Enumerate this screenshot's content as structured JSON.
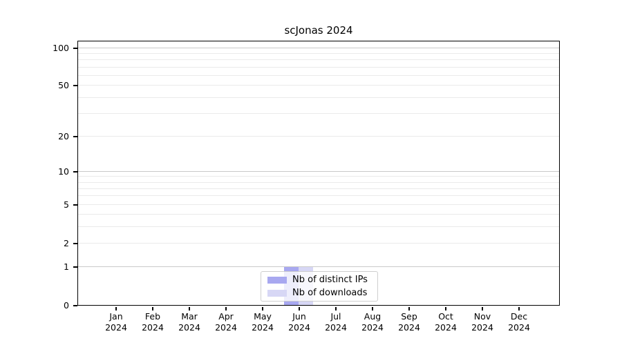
{
  "chart_data": {
    "type": "bar",
    "title": "scJonas 2024",
    "x_categories": [
      "Jan",
      "Feb",
      "Mar",
      "Apr",
      "May",
      "Jun",
      "Jul",
      "Aug",
      "Sep",
      "Oct",
      "Nov",
      "Dec"
    ],
    "x_year": "2024",
    "series": [
      {
        "name": "Nb of distinct IPs",
        "color": "#a8a8f0",
        "values": [
          0,
          0,
          0,
          0,
          0,
          1,
          0,
          0,
          0,
          0,
          0,
          0
        ]
      },
      {
        "name": "Nb of downloads",
        "color": "#d7d7f5",
        "values": [
          0,
          0,
          0,
          0,
          0,
          1,
          0,
          0,
          0,
          0,
          0,
          0
        ]
      }
    ],
    "yscale": "symlog (log above 1, linear 0 to 1)",
    "ylim": [
      0,
      100
    ],
    "yticks": [
      100,
      50,
      20,
      10,
      5,
      2,
      1,
      0
    ],
    "grid": "horizontal major and log-minor gridlines",
    "legend_position": "lower center, translucent white frame",
    "colors": {
      "grid_major": "#c9c9c9",
      "grid_minor": "#eaeaea",
      "axis_spine": "#000000",
      "background": "#ffffff"
    }
  }
}
